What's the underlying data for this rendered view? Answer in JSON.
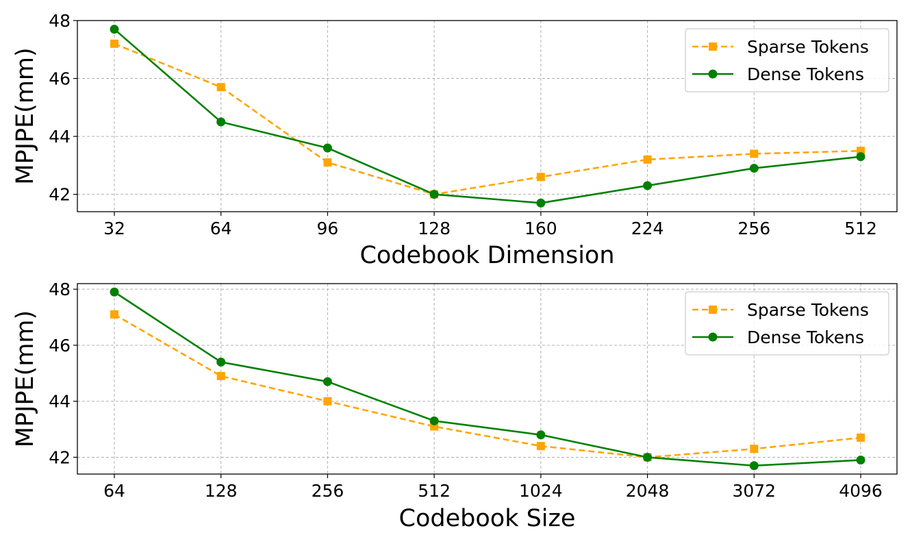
{
  "chart_data": [
    {
      "type": "line",
      "title": "",
      "xlabel": "Codebook Dimension",
      "ylabel": "MPJPE(mm)",
      "categories": [
        "32",
        "64",
        "96",
        "128",
        "160",
        "224",
        "256",
        "512"
      ],
      "ylim": [
        41.4,
        48.0
      ],
      "yticks": [
        "42",
        "44",
        "46",
        "48"
      ],
      "grid": true,
      "legend_position": "top-right",
      "series": [
        {
          "name": "Sparse Tokens",
          "color": "#FFA500",
          "marker": "square",
          "linestyle": "dashed",
          "values": [
            47.2,
            45.7,
            43.1,
            42.0,
            42.6,
            43.2,
            43.4,
            43.5
          ]
        },
        {
          "name": "Dense Tokens",
          "color": "#008000",
          "marker": "circle",
          "linestyle": "solid",
          "values": [
            47.7,
            44.5,
            43.6,
            42.0,
            41.7,
            42.3,
            42.9,
            43.3
          ]
        }
      ]
    },
    {
      "type": "line",
      "title": "",
      "xlabel": "Codebook Size",
      "ylabel": "MPJPE(mm)",
      "categories": [
        "64",
        "128",
        "256",
        "512",
        "1024",
        "2048",
        "3072",
        "4096"
      ],
      "ylim": [
        41.4,
        48.2
      ],
      "yticks": [
        "42",
        "44",
        "46",
        "48"
      ],
      "grid": true,
      "legend_position": "top-right",
      "series": [
        {
          "name": "Sparse Tokens",
          "color": "#FFA500",
          "marker": "square",
          "linestyle": "dashed",
          "values": [
            47.1,
            44.9,
            44.0,
            43.1,
            42.4,
            42.0,
            42.3,
            42.7
          ]
        },
        {
          "name": "Dense Tokens",
          "color": "#008000",
          "marker": "circle",
          "linestyle": "solid",
          "values": [
            47.9,
            45.4,
            44.7,
            43.3,
            42.8,
            42.0,
            41.7,
            41.9
          ]
        }
      ]
    }
  ]
}
